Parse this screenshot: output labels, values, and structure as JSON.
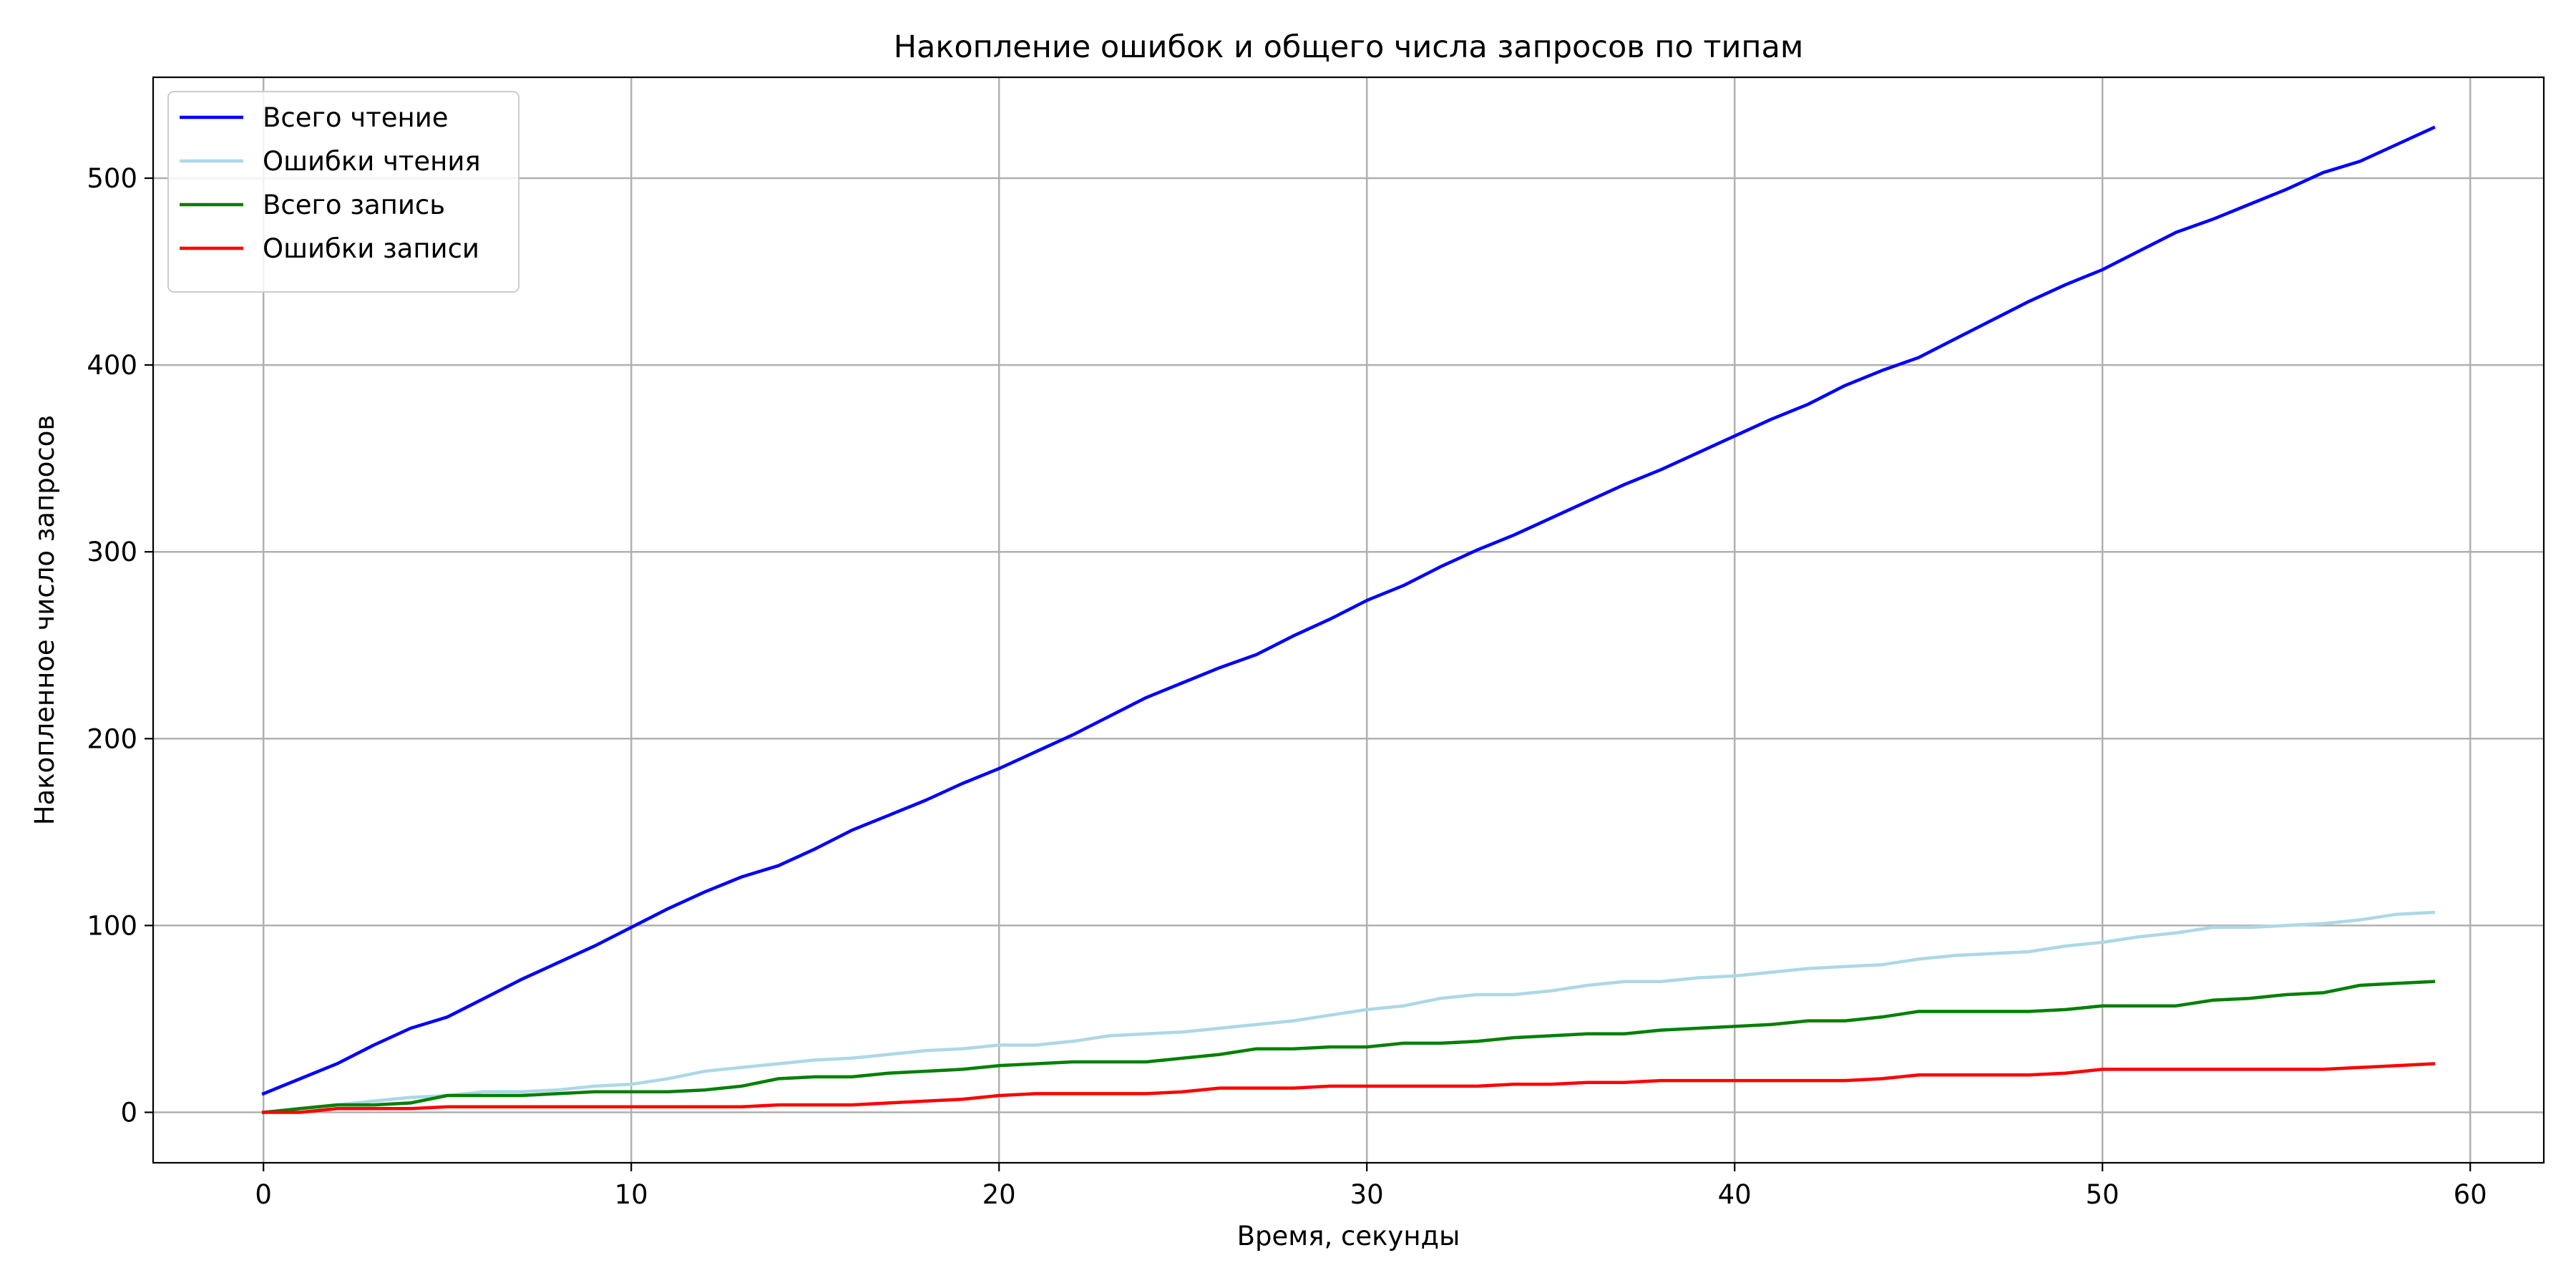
{
  "chart_data": {
    "type": "line",
    "title": "Накопление ошибок и общего числа запросов по типам",
    "xlabel": "Время, секунды",
    "ylabel": "Накопленное число запросов",
    "xlim": [
      -3,
      62
    ],
    "ylim": [
      -27,
      554
    ],
    "xticks": [
      0,
      10,
      20,
      30,
      40,
      50,
      60
    ],
    "yticks": [
      0,
      100,
      200,
      300,
      400,
      500
    ],
    "grid": true,
    "legend_position": "upper-left",
    "x": [
      0,
      1,
      2,
      3,
      4,
      5,
      6,
      7,
      8,
      9,
      10,
      11,
      12,
      13,
      14,
      15,
      16,
      17,
      18,
      19,
      20,
      21,
      22,
      23,
      24,
      25,
      26,
      27,
      28,
      29,
      30,
      31,
      32,
      33,
      34,
      35,
      36,
      37,
      38,
      39,
      40,
      41,
      42,
      43,
      44,
      45,
      46,
      47,
      48,
      49,
      50,
      51,
      52,
      53,
      54,
      55,
      56,
      57,
      58,
      59
    ],
    "series": [
      {
        "name": "Всего чтение",
        "color": "#0000ff",
        "values": [
          10,
          18,
          26,
          36,
          45,
          51,
          61,
          71,
          80,
          89,
          99,
          109,
          118,
          126,
          132,
          141,
          151,
          159,
          167,
          176,
          184,
          193,
          202,
          212,
          222,
          230,
          238,
          245,
          255,
          264,
          274,
          282,
          292,
          301,
          309,
          318,
          327,
          336,
          344,
          353,
          362,
          371,
          379,
          389,
          397,
          404,
          414,
          424,
          434,
          443,
          451,
          461,
          471,
          478,
          486,
          494,
          503,
          509,
          518,
          527
        ]
      },
      {
        "name": "Ошибки чтения",
        "color": "#add8e6",
        "values": [
          0,
          2,
          4,
          6,
          8,
          9,
          11,
          11,
          12,
          14,
          15,
          18,
          22,
          24,
          26,
          28,
          29,
          31,
          33,
          34,
          36,
          36,
          38,
          41,
          42,
          43,
          45,
          47,
          49,
          52,
          55,
          57,
          61,
          63,
          63,
          65,
          68,
          70,
          70,
          72,
          73,
          75,
          77,
          78,
          79,
          82,
          84,
          85,
          86,
          89,
          91,
          94,
          96,
          99,
          99,
          100,
          101,
          103,
          106,
          107
        ]
      },
      {
        "name": "Всего запись",
        "color": "#008000",
        "values": [
          0,
          2,
          4,
          4,
          5,
          9,
          9,
          9,
          10,
          11,
          11,
          11,
          12,
          14,
          18,
          19,
          19,
          21,
          22,
          23,
          25,
          26,
          27,
          27,
          27,
          29,
          31,
          34,
          34,
          35,
          35,
          37,
          37,
          38,
          40,
          41,
          42,
          42,
          44,
          45,
          46,
          47,
          49,
          49,
          51,
          54,
          54,
          54,
          54,
          55,
          57,
          57,
          57,
          60,
          61,
          63,
          64,
          68,
          69,
          70
        ]
      },
      {
        "name": "Ошибки записи",
        "color": "#ff0000",
        "values": [
          0,
          0,
          2,
          2,
          2,
          3,
          3,
          3,
          3,
          3,
          3,
          3,
          3,
          3,
          4,
          4,
          4,
          5,
          6,
          7,
          9,
          10,
          10,
          10,
          10,
          11,
          13,
          13,
          13,
          14,
          14,
          14,
          14,
          14,
          15,
          15,
          16,
          16,
          17,
          17,
          17,
          17,
          17,
          17,
          18,
          20,
          20,
          20,
          20,
          21,
          23,
          23,
          23,
          23,
          23,
          23,
          23,
          24,
          25,
          26
        ]
      }
    ]
  }
}
